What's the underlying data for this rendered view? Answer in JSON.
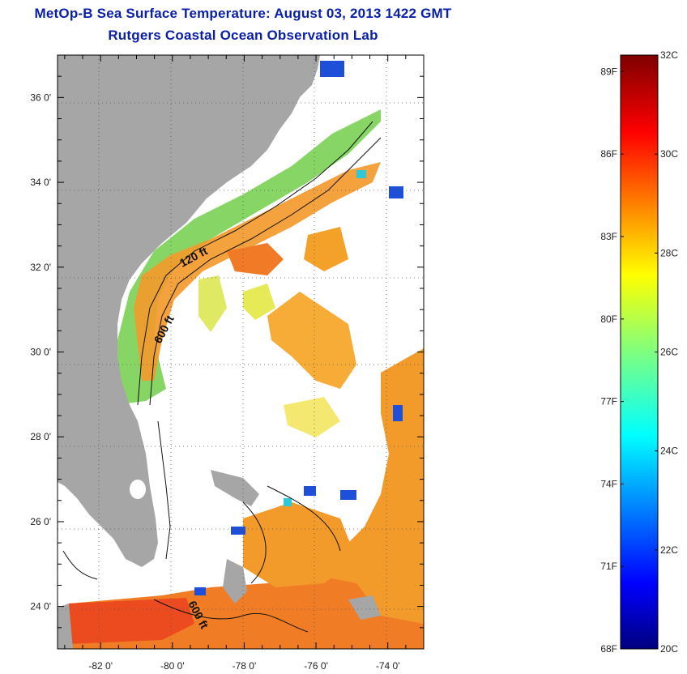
{
  "title": {
    "line1": "MetOp-B Sea Surface Temperature:  August 03, 2013 1422 GMT",
    "line2": "Rutgers Coastal Ocean Observation Lab"
  },
  "colors": {
    "title": "#0a1fa8",
    "land": "#a6a6a6",
    "ocean_nodata": "#ffffff",
    "contour": "#111111"
  },
  "map": {
    "lat_labels": [
      "36 0'",
      "34 0'",
      "32 0'",
      "30 0'",
      "28 0'",
      "26 0'",
      "24 0'"
    ],
    "lat_values": [
      36,
      34,
      32,
      30,
      28,
      26,
      24
    ],
    "lon_labels": [
      "-82 0'",
      "-80 0'",
      "-78 0'",
      "-76 0'",
      "-74 0'"
    ],
    "lon_values": [
      -82,
      -80,
      -78,
      -76,
      -74
    ],
    "lat_range": [
      23.0,
      37.0
    ],
    "lon_range": [
      -83.2,
      -73.0
    ],
    "grid": "dotted",
    "contour_labels": [
      "120 ft",
      "600 ft",
      "600 ft"
    ]
  },
  "colorbar": {
    "units_c": [
      "32C",
      "30C",
      "28C",
      "26C",
      "24C",
      "22C",
      "20C"
    ],
    "values_c": [
      32,
      30,
      28,
      26,
      24,
      22,
      20
    ],
    "units_f": [
      "89F",
      "86F",
      "83F",
      "80F",
      "77F",
      "74F",
      "71F",
      "68F"
    ],
    "values_f": [
      89,
      86,
      83,
      80,
      77,
      74,
      71,
      68
    ],
    "range_c": [
      20,
      32
    ],
    "colormap": "jet"
  }
}
